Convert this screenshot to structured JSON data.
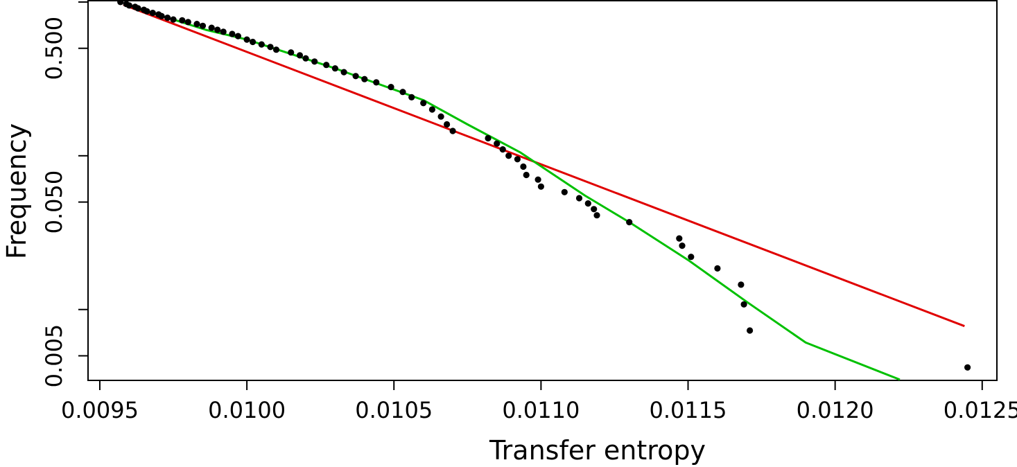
{
  "chart_data": {
    "type": "scatter",
    "title": "",
    "xlabel": "Transfer entropy",
    "ylabel": "Frequency",
    "xlim": [
      0.00946,
      0.01255
    ],
    "ylim": [
      0.00346,
      1.02
    ],
    "y_scale": "log",
    "x_ticks": [
      {
        "value": 0.0095,
        "label": "0.0095"
      },
      {
        "value": 0.01,
        "label": "0.0100"
      },
      {
        "value": 0.0105,
        "label": "0.0105"
      },
      {
        "value": 0.011,
        "label": "0.0110"
      },
      {
        "value": 0.0115,
        "label": "0.0115"
      },
      {
        "value": 0.012,
        "label": "0.0120"
      },
      {
        "value": 0.0125,
        "label": "0.0125"
      }
    ],
    "y_ticks": [
      {
        "value": 0.005,
        "label": "0.005"
      },
      {
        "value": 0.01,
        "label": ""
      },
      {
        "value": 0.05,
        "label": "0.050"
      },
      {
        "value": 0.1,
        "label": ""
      },
      {
        "value": 0.5,
        "label": "0.500"
      },
      {
        "value": 1.0,
        "label": ""
      }
    ],
    "grid": false,
    "colors": {
      "points": "#000000",
      "fit_exponential": "#e00000",
      "fit_curved": "#00c000"
    },
    "points": [
      [
        0.00957,
        1.0
      ],
      [
        0.00959,
        0.97
      ],
      [
        0.0096,
        0.95
      ],
      [
        0.00962,
        0.93
      ],
      [
        0.00963,
        0.91
      ],
      [
        0.00965,
        0.89
      ],
      [
        0.00966,
        0.87
      ],
      [
        0.00968,
        0.85
      ],
      [
        0.0097,
        0.83
      ],
      [
        0.00971,
        0.81
      ],
      [
        0.00973,
        0.79
      ],
      [
        0.00975,
        0.77
      ],
      [
        0.00978,
        0.76
      ],
      [
        0.0098,
        0.74
      ],
      [
        0.00983,
        0.72
      ],
      [
        0.00985,
        0.7
      ],
      [
        0.00988,
        0.68
      ],
      [
        0.0099,
        0.66
      ],
      [
        0.00992,
        0.64
      ],
      [
        0.00995,
        0.62
      ],
      [
        0.00997,
        0.6
      ],
      [
        0.01,
        0.57
      ],
      [
        0.01002,
        0.55
      ],
      [
        0.01005,
        0.53
      ],
      [
        0.01008,
        0.51
      ],
      [
        0.0101,
        0.49
      ],
      [
        0.01015,
        0.47
      ],
      [
        0.01018,
        0.45
      ],
      [
        0.0102,
        0.43
      ],
      [
        0.01023,
        0.41
      ],
      [
        0.01027,
        0.39
      ],
      [
        0.0103,
        0.37
      ],
      [
        0.01033,
        0.35
      ],
      [
        0.01037,
        0.33
      ],
      [
        0.0104,
        0.315
      ],
      [
        0.01044,
        0.3
      ],
      [
        0.01049,
        0.28
      ],
      [
        0.01053,
        0.26
      ],
      [
        0.01056,
        0.24
      ],
      [
        0.0106,
        0.22
      ],
      [
        0.01063,
        0.2
      ],
      [
        0.01066,
        0.18
      ],
      [
        0.01068,
        0.16
      ],
      [
        0.0107,
        0.145
      ],
      [
        0.01082,
        0.13
      ],
      [
        0.01085,
        0.12
      ],
      [
        0.01087,
        0.11
      ],
      [
        0.01089,
        0.1
      ],
      [
        0.01092,
        0.095
      ],
      [
        0.01094,
        0.085
      ],
      [
        0.01095,
        0.075
      ],
      [
        0.01099,
        0.07
      ],
      [
        0.011,
        0.063
      ],
      [
        0.01108,
        0.058
      ],
      [
        0.01113,
        0.053
      ],
      [
        0.01116,
        0.049
      ],
      [
        0.01118,
        0.045
      ],
      [
        0.01119,
        0.041
      ],
      [
        0.0113,
        0.037
      ],
      [
        0.01147,
        0.029
      ],
      [
        0.01148,
        0.026
      ],
      [
        0.01151,
        0.022
      ],
      [
        0.0116,
        0.0185
      ],
      [
        0.01168,
        0.0145
      ],
      [
        0.01169,
        0.0108
      ],
      [
        0.01171,
        0.0073
      ],
      [
        0.01245,
        0.0042
      ]
    ],
    "series": [
      {
        "type": "line",
        "color": "#e00000",
        "x": [
          0.00958,
          0.01244
        ],
        "y": [
          0.96,
          0.0078
        ]
      },
      {
        "type": "line",
        "color": "#00c000",
        "x": [
          0.00963,
          0.00975,
          0.00986,
          0.01,
          0.0103,
          0.0106,
          0.01075,
          0.01093,
          0.01115,
          0.0113,
          0.0115,
          0.0117,
          0.0119,
          0.01222
        ],
        "y": [
          0.9,
          0.77,
          0.66,
          0.57,
          0.37,
          0.23,
          0.16,
          0.105,
          0.055,
          0.037,
          0.021,
          0.0112,
          0.0061,
          0.0035
        ]
      }
    ]
  }
}
